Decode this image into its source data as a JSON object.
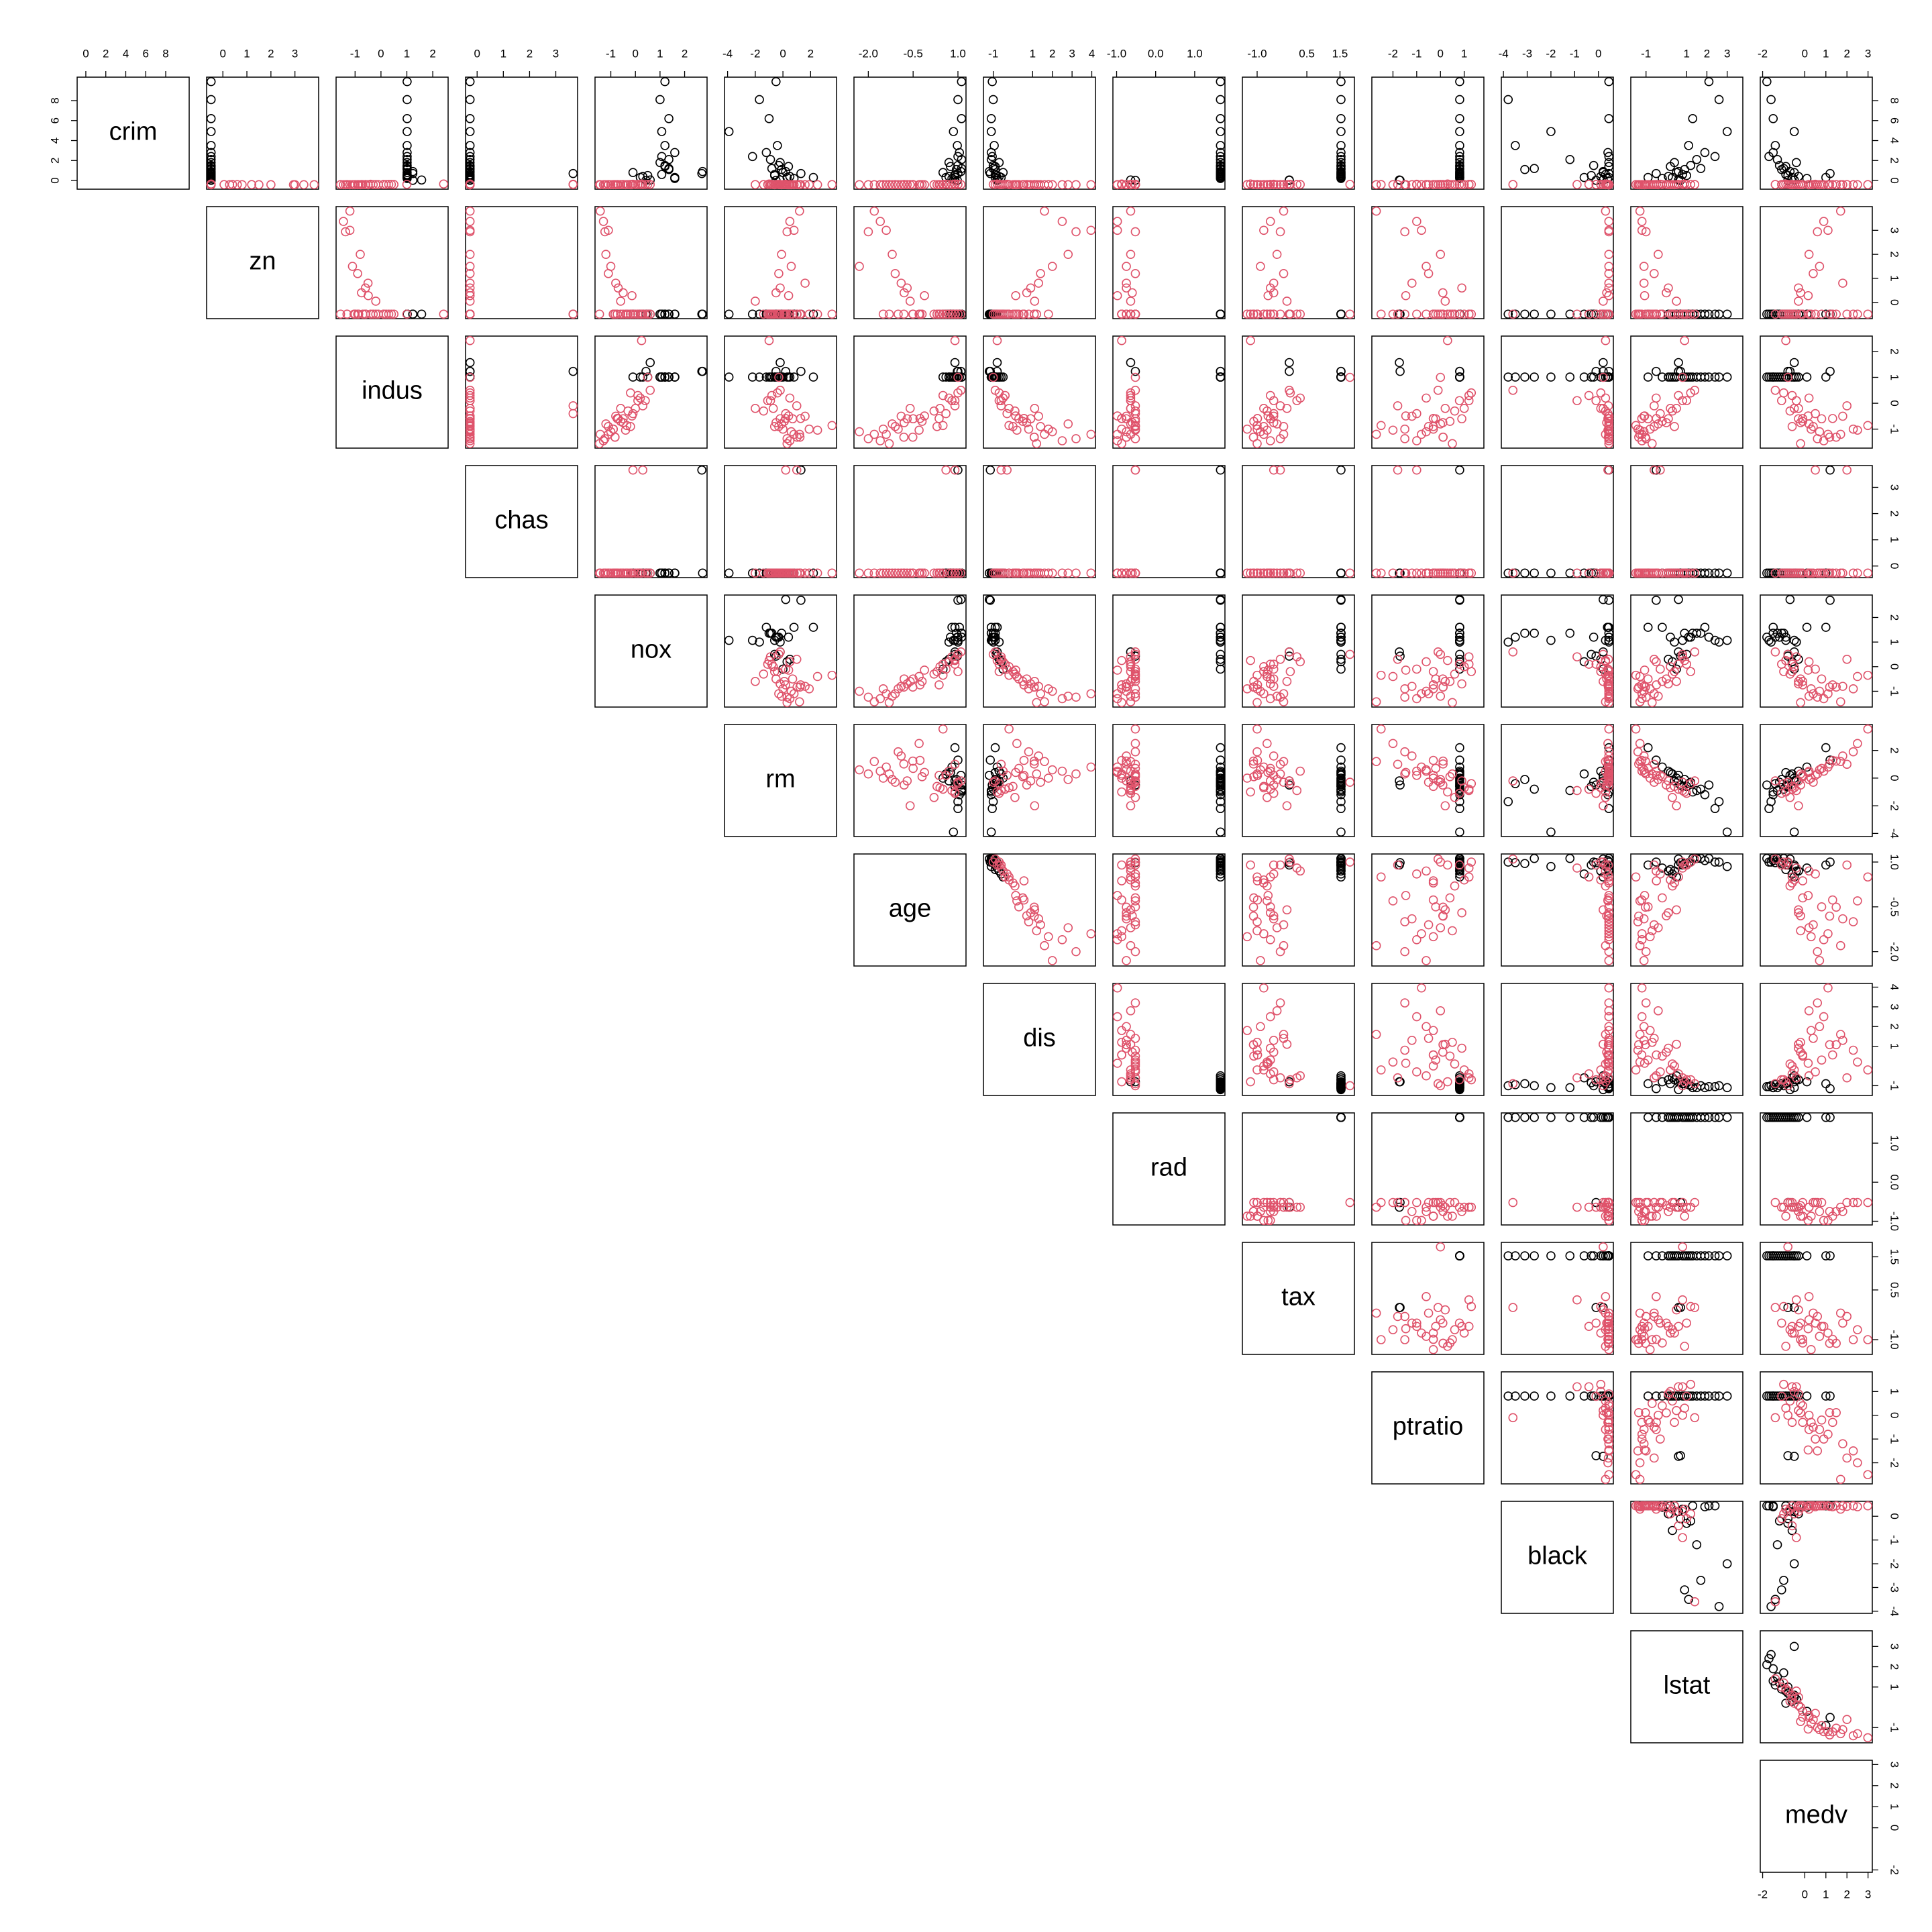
{
  "chart_data": {
    "type": "pairs",
    "variables": [
      {
        "name": "crim",
        "lim": [
          -0.42,
          9.9
        ],
        "ticks": [
          0,
          2,
          4,
          6,
          8
        ]
      },
      {
        "name": "zn",
        "lim": [
          -0.49,
          3.8
        ],
        "ticks": [
          0,
          1,
          2,
          3
        ]
      },
      {
        "name": "indus",
        "lim": [
          -1.56,
          2.42
        ],
        "ticks": [
          -1,
          0,
          1,
          2
        ]
      },
      {
        "name": "chas",
        "lim": [
          -0.27,
          3.66
        ],
        "ticks": [
          0,
          1,
          2,
          3
        ]
      },
      {
        "name": "nox",
        "lim": [
          -1.46,
          2.73
        ],
        "ticks": [
          -1,
          0,
          1,
          2
        ]
      },
      {
        "name": "rm",
        "lim": [
          -3.9,
          3.55
        ],
        "ticks": [
          -4,
          -2,
          0,
          2
        ]
      },
      {
        "name": "age",
        "lim": [
          -2.33,
          1.12
        ],
        "ticks": [
          {
            "value": -2,
            "label": "-2.0"
          },
          {
            "value": -0.5,
            "label": "-0.5"
          },
          {
            "value": 1,
            "label": "1.0"
          }
        ]
      },
      {
        "name": "dis",
        "lim": [
          -1.27,
          3.96
        ],
        "ticks": [
          -1,
          1,
          2,
          3,
          4
        ]
      },
      {
        "name": "rad",
        "lim": [
          -0.98,
          1.66
        ],
        "ticks": [
          {
            "value": -1,
            "label": "-1.0"
          },
          {
            "value": 0,
            "label": "0.0"
          },
          {
            "value": 1,
            "label": "1.0"
          }
        ]
      },
      {
        "name": "tax",
        "lim": [
          -1.31,
          1.8
        ],
        "ticks": [
          {
            "value": -1,
            "label": "-1.0"
          },
          0.5,
          1.5
        ]
      },
      {
        "name": "ptratio",
        "lim": [
          -2.7,
          1.64
        ],
        "ticks": [
          -2,
          -1,
          0,
          1
        ]
      },
      {
        "name": "black",
        "lim": [
          -3.9,
          0.44
        ],
        "ticks": [
          -4,
          -3,
          -2,
          -1,
          0
        ]
      },
      {
        "name": "lstat",
        "lim": [
          -1.53,
          3.55
        ],
        "ticks": [
          -1,
          1,
          2,
          3
        ]
      },
      {
        "name": "medv",
        "lim": [
          -1.9,
          2.99
        ],
        "ticks": [
          -2,
          0,
          1,
          2,
          3
        ]
      }
    ],
    "series": [
      {
        "color": "#000000",
        "points": [
          [
            0.6,
            -0.49,
            1.01,
            -0.27,
            1.07,
            -0.6,
            0.9,
            -0.9,
            1.66,
            1.53,
            0.81,
            0.3,
            0.8,
            -0.9
          ],
          [
            1.5,
            -0.49,
            1.01,
            -0.27,
            1.2,
            -0.3,
            1.0,
            -1.0,
            1.66,
            1.53,
            0.81,
            -0.2,
            1.2,
            -1.2
          ],
          [
            2.8,
            -0.49,
            1.01,
            -0.27,
            1.6,
            -1.2,
            1.05,
            -1.1,
            1.66,
            1.53,
            0.81,
            0.4,
            1.9,
            -1.5
          ],
          [
            9.9,
            -0.49,
            1.01,
            -0.27,
            1.2,
            -0.5,
            1.12,
            -1.05,
            1.66,
            1.53,
            0.81,
            0.44,
            2.1,
            -1.8
          ],
          [
            8.1,
            -0.49,
            1.01,
            -0.27,
            1.0,
            -1.7,
            1.0,
            -1.0,
            1.66,
            1.53,
            0.81,
            -3.8,
            2.6,
            -1.6
          ],
          [
            0.4,
            -0.49,
            1.01,
            -0.27,
            0.3,
            0.5,
            0.7,
            -0.7,
            1.66,
            1.53,
            0.81,
            0.1,
            0.1,
            -0.3
          ],
          [
            1.1,
            -0.49,
            1.01,
            -0.27,
            1.36,
            -0.1,
            0.95,
            -0.9,
            1.66,
            1.53,
            0.81,
            -3.1,
            0.9,
            -1.1
          ],
          [
            0.9,
            -0.49,
            1.23,
            -0.27,
            2.73,
            0.2,
            1.1,
            -1.2,
            1.66,
            1.53,
            0.81,
            0.2,
            0.6,
            -0.7
          ],
          [
            0.7,
            -0.49,
            1.23,
            3.66,
            2.7,
            1.3,
            1.0,
            -1.15,
            1.66,
            1.53,
            0.81,
            0.44,
            -0.5,
            1.2
          ],
          [
            4.9,
            -0.49,
            1.01,
            -0.27,
            1.07,
            -3.9,
            0.85,
            -1.1,
            1.66,
            1.53,
            0.81,
            -2.0,
            3.0,
            -0.5
          ],
          [
            0.3,
            -0.49,
            1.01,
            -0.27,
            0.2,
            0.3,
            0.6,
            -0.6,
            1.66,
            1.53,
            0.81,
            -0.6,
            0.3,
            -0.6
          ],
          [
            2.1,
            -0.49,
            1.01,
            -0.27,
            1.36,
            -0.9,
            1.12,
            -1.1,
            1.66,
            1.53,
            0.81,
            -1.2,
            1.5,
            -1.3
          ],
          [
            0.2,
            -0.49,
            1.01,
            -0.27,
            1.6,
            0.8,
            0.8,
            -0.8,
            1.66,
            1.53,
            0.81,
            0.38,
            -0.2,
            0.1
          ],
          [
            3.5,
            -0.49,
            1.01,
            -0.27,
            1.2,
            -0.4,
            0.98,
            -0.95,
            1.66,
            1.53,
            0.81,
            -3.5,
            1.1,
            -1.4
          ],
          [
            1.8,
            -0.49,
            1.01,
            -0.27,
            1.0,
            -0.2,
            0.7,
            -0.7,
            1.66,
            1.53,
            0.81,
            0.44,
            0.4,
            -0.4
          ],
          [
            0.5,
            -0.49,
            1.01,
            -0.27,
            0.5,
            -0.6,
            0.9,
            -0.85,
            1.66,
            1.53,
            0.81,
            -0.3,
            1.0,
            -0.8
          ],
          [
            0.3,
            -0.49,
            1.01,
            -0.27,
            1.6,
            2.2,
            0.9,
            -0.9,
            1.66,
            1.53,
            0.81,
            0.44,
            -0.9,
            1.0
          ],
          [
            1.2,
            -0.49,
            1.01,
            -0.27,
            1.36,
            -0.8,
            1.12,
            -1.0,
            1.66,
            1.53,
            0.81,
            -2.7,
            1.7,
            -1.0
          ],
          [
            0.8,
            -0.49,
            1.01,
            -0.27,
            -0.1,
            0.0,
            0.5,
            -0.5,
            1.66,
            1.53,
            0.81,
            0.2,
            0.5,
            -0.5
          ],
          [
            2.4,
            -0.49,
            1.01,
            -0.27,
            1.07,
            -2.2,
            1.0,
            -1.05,
            1.66,
            1.53,
            0.81,
            0.44,
            2.4,
            -1.7
          ],
          [
            0.05,
            -0.49,
            1.57,
            -0.27,
            0.6,
            -0.2,
            0.9,
            -0.8,
            -0.64,
            -0.03,
            -1.73,
            0.2,
            0.6,
            -0.5
          ],
          [
            0.02,
            -0.49,
            1.23,
            -0.27,
            0.43,
            -0.5,
            0.98,
            -0.8,
            -0.52,
            -0.03,
            -1.7,
            -0.1,
            0.7,
            -0.8
          ],
          [
            1.4,
            -0.49,
            1.01,
            -0.27,
            1.2,
            0.4,
            0.75,
            -0.9,
            1.66,
            1.53,
            0.81,
            0.44,
            0.2,
            -0.9
          ],
          [
            6.2,
            -0.49,
            1.01,
            -0.27,
            1.36,
            -1.0,
            1.12,
            -1.1,
            1.66,
            1.53,
            0.81,
            0.44,
            1.3,
            -1.5
          ]
        ]
      },
      {
        "color": "#DF536B",
        "points": [
          [
            -0.42,
            0.28,
            -0.49,
            -0.27,
            -0.14,
            0.41,
            -0.12,
            0.14,
            -0.98,
            -0.67,
            -1.46,
            0.44,
            -1.07,
            0.16
          ],
          [
            -0.41,
            -0.49,
            -0.59,
            -0.27,
            -0.74,
            0.19,
            0.37,
            0.56,
            -0.87,
            -0.99,
            -0.3,
            0.44,
            -0.49,
            -0.1
          ],
          [
            -0.41,
            -0.49,
            -0.59,
            -0.27,
            -0.74,
            1.28,
            -0.27,
            0.56,
            -0.87,
            -0.99,
            -0.3,
            0.4,
            -1.21,
            1.32
          ],
          [
            -0.41,
            -0.49,
            -1.31,
            -0.27,
            -0.83,
            1.02,
            -0.81,
            1.08,
            -0.75,
            -1.11,
            0.11,
            0.42,
            -1.36,
            1.18
          ],
          [
            -0.41,
            -0.49,
            -1.31,
            -0.27,
            -0.83,
            1.23,
            -0.51,
            1.08,
            -0.75,
            -1.11,
            0.11,
            0.44,
            -1.03,
            1.49
          ],
          [
            -0.42,
            3.37,
            -1.45,
            -0.27,
            -1.3,
            0.5,
            -1.6,
            2.5,
            -0.98,
            -0.6,
            -1.0,
            0.44,
            -1.2,
            0.9
          ],
          [
            -0.42,
            2.94,
            -1.37,
            -0.27,
            -1.24,
            0.3,
            -2.0,
            3.2,
            -0.52,
            -0.3,
            -1.5,
            0.44,
            -1.0,
            0.6
          ],
          [
            -0.42,
            3.8,
            -1.2,
            -0.27,
            -1.43,
            1.2,
            -1.8,
            1.6,
            -0.64,
            -0.2,
            -2.7,
            0.3,
            -1.3,
            1.7
          ],
          [
            -0.41,
            1.2,
            -0.9,
            -0.27,
            -1.1,
            -0.3,
            -1.1,
            1.4,
            -0.52,
            -0.2,
            -0.5,
            0.44,
            -0.6,
            0.4
          ],
          [
            -0.4,
            0.4,
            -0.75,
            -0.27,
            -0.5,
            -0.5,
            -0.8,
            0.7,
            -0.6,
            -0.5,
            0.1,
            0.35,
            0.0,
            -0.2
          ],
          [
            -0.39,
            -0.49,
            0.3,
            -0.27,
            0.1,
            -0.8,
            0.5,
            -0.4,
            -0.64,
            -0.6,
            1.2,
            -0.4,
            0.6,
            -0.6
          ],
          [
            -0.38,
            -0.49,
            -0.4,
            3.66,
            -0.1,
            0.2,
            0.6,
            -0.3,
            -0.52,
            -0.5,
            -1.0,
            0.4,
            -0.3,
            0.5
          ],
          [
            -0.35,
            -0.49,
            2.42,
            -0.27,
            0.25,
            -1.0,
            0.9,
            -0.8,
            -0.87,
            -1.2,
            0.3,
            0.3,
            0.9,
            -0.9
          ],
          [
            -0.41,
            -0.49,
            -0.86,
            -0.27,
            -0.35,
            3.55,
            0.5,
            -0.2,
            -0.52,
            -1.0,
            -2.5,
            0.44,
            -1.5,
            2.99
          ],
          [
            -0.42,
            -0.49,
            -1.04,
            -0.27,
            -0.4,
            2.5,
            -0.3,
            0.2,
            -0.52,
            -0.7,
            -2.0,
            0.4,
            -1.3,
            2.5
          ],
          [
            -0.41,
            0.05,
            -0.2,
            -0.27,
            -0.6,
            -2.0,
            -0.6,
            1.1,
            -0.64,
            -0.1,
            0.2,
            0.2,
            0.5,
            -0.3
          ],
          [
            -0.39,
            -0.49,
            0.4,
            -0.27,
            -0.2,
            -0.4,
            1.0,
            -0.7,
            -0.64,
            0.0,
            1.3,
            0.1,
            1.2,
            -1.0
          ],
          [
            -0.41,
            -0.49,
            -1.0,
            -0.27,
            -0.9,
            0.0,
            -1.5,
            1.8,
            -0.87,
            -1.3,
            -0.3,
            0.44,
            -0.8,
            0.3
          ],
          [
            -0.42,
            1.5,
            -1.1,
            -0.27,
            -1.0,
            0.6,
            -2.3,
            2.0,
            -0.75,
            -0.9,
            -0.6,
            0.44,
            -1.1,
            0.7
          ],
          [
            -0.41,
            -0.49,
            -0.1,
            3.66,
            0.3,
            1.0,
            0.9,
            -0.6,
            -0.52,
            -0.3,
            -1.8,
            0.42,
            -0.6,
            2.0
          ],
          [
            -0.4,
            -0.49,
            0.1,
            -0.27,
            0.4,
            -0.9,
            0.8,
            -0.6,
            -0.64,
            0.2,
            1.2,
            -0.9,
            0.8,
            -0.4
          ],
          [
            -0.41,
            -0.49,
            -0.6,
            -0.27,
            -0.5,
            0.7,
            -0.5,
            0.3,
            -0.52,
            -0.6,
            -0.2,
            0.44,
            -0.9,
            0.8
          ],
          [
            -0.4,
            -0.49,
            0.5,
            -0.27,
            0.6,
            -0.2,
            1.1,
            -0.9,
            -0.52,
            -0.03,
            -0.1,
            -3.6,
            1.4,
            -1.4
          ],
          [
            -0.42,
            2.0,
            -0.8,
            -0.27,
            -1.2,
            -0.1,
            -1.2,
            2.8,
            -0.64,
            -0.4,
            0.0,
            0.44,
            -0.4,
            0.2
          ],
          [
            -0.41,
            -0.49,
            -0.3,
            -0.27,
            -0.3,
            -1.4,
            0.2,
            0.1,
            -0.52,
            -0.7,
            0.6,
            0.3,
            0.3,
            -0.7
          ],
          [
            -0.42,
            0.8,
            -0.5,
            -0.27,
            -0.8,
            1.6,
            -0.9,
            1.3,
            -0.75,
            -0.5,
            -1.2,
            0.44,
            -1.1,
            1.8
          ],
          [
            -0.41,
            -0.49,
            -0.2,
            -0.27,
            0.0,
            -0.7,
            0.4,
            -0.2,
            -0.64,
            -0.8,
            1.0,
            0.1,
            0.2,
            -0.5
          ],
          [
            -0.39,
            -0.49,
            1.0,
            -0.27,
            0.5,
            -0.3,
            1.0,
            -1.0,
            -0.52,
            1.8,
            0.0,
            0.2,
            0.8,
            -0.8
          ],
          [
            -0.42,
            3.0,
            -1.2,
            -0.27,
            -1.1,
            0.8,
            -1.4,
            3.96,
            -0.98,
            -0.8,
            -0.8,
            0.44,
            -1.2,
            1.1
          ],
          [
            -0.41,
            -0.49,
            -0.7,
            -0.27,
            -0.6,
            0.1,
            -0.2,
            0.5,
            -0.52,
            -1.1,
            0.4,
            0.44,
            -0.2,
            -0.1
          ],
          [
            -0.4,
            -0.49,
            0.2,
            -0.27,
            0.2,
            0.5,
            0.7,
            -0.5,
            -0.64,
            0.3,
            -0.6,
            0.3,
            -0.5,
            0.2
          ],
          [
            -0.41,
            0.6,
            -0.6,
            -0.27,
            -0.7,
            -0.2,
            -0.7,
            0.9,
            -0.75,
            -0.6,
            0.9,
            0.44,
            0.1,
            -0.3
          ],
          [
            -0.42,
            -0.49,
            -1.0,
            -0.27,
            -0.9,
            1.9,
            -1.0,
            0.8,
            -0.52,
            -1.0,
            -1.5,
            0.44,
            -1.4,
            2.3
          ],
          [
            -0.4,
            -0.49,
            0.1,
            -0.27,
            0.1,
            -1.1,
            0.9,
            -0.7,
            -0.64,
            -0.5,
            0.8,
            -0.1,
            1.0,
            -1.1
          ],
          [
            -0.41,
            -0.49,
            -1.56,
            -0.27,
            -1.46,
            0.3,
            -1.3,
            1.2,
            -0.87,
            -1.0,
            0.5,
            0.44,
            -0.7,
            -0.2
          ],
          [
            -0.42,
            -0.49,
            -0.9,
            -0.27,
            -0.2,
            -0.6,
            0.3,
            0.0,
            -0.52,
            -0.8,
            -0.3,
            0.44,
            0.4,
            -0.6
          ]
        ]
      }
    ]
  }
}
